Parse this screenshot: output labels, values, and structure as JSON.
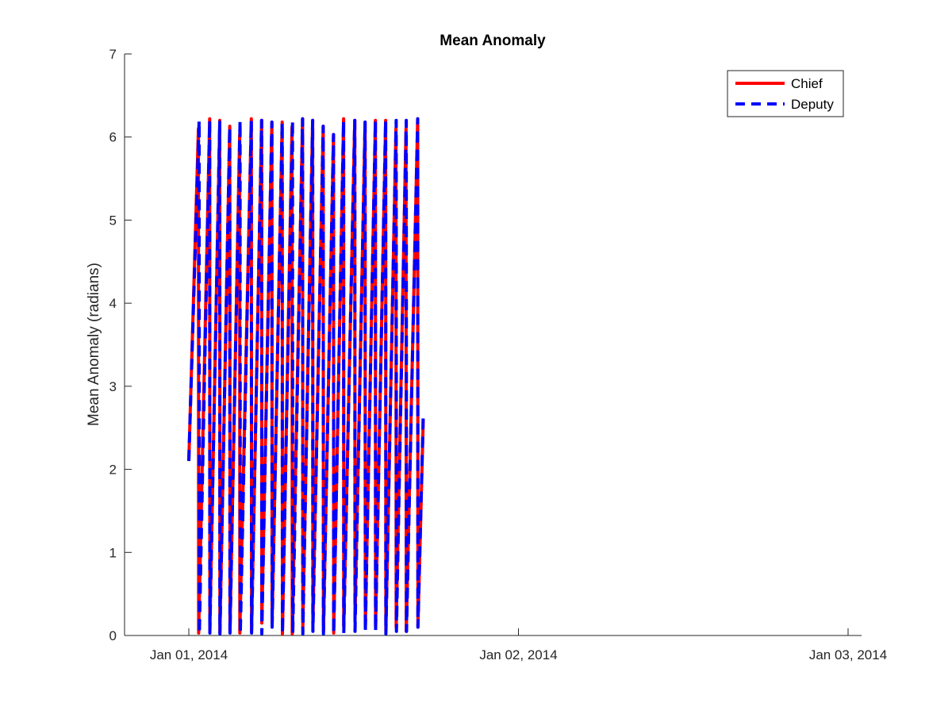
{
  "chart_data": {
    "type": "line",
    "title": "Mean Anomaly",
    "xlabel": "",
    "ylabel": "Mean Anomaly (radians)",
    "x_ticks": [
      "Jan 01, 2014",
      "Jan 02, 2014",
      "Jan 03, 2014"
    ],
    "xlim": [
      "Jan 01, 2014",
      "Jan 03, 2014"
    ],
    "ylim": [
      0,
      7
    ],
    "y_ticks": [
      0,
      1,
      2,
      3,
      4,
      5,
      6,
      7
    ],
    "grid": false,
    "legend_position": "top-right",
    "series": [
      {
        "name": "Chief",
        "color": "#ff0000",
        "style": "solid",
        "x": [
          "2014-01-01T00:00",
          "2014-01-01T00:42",
          "2014-01-01T00:43",
          "2014-01-01T01:31",
          "2014-01-01T01:32",
          "2014-01-01T02:15",
          "2014-01-01T02:16",
          "2014-01-01T02:59",
          "2014-01-01T03:00",
          "2014-01-01T03:42",
          "2014-01-01T03:43",
          "2014-01-01T04:33",
          "2014-01-01T04:34",
          "2014-01-01T05:18",
          "2014-01-01T05:19",
          "2014-01-01T06:03",
          "2014-01-01T06:04",
          "2014-01-01T06:48",
          "2014-01-01T06:49",
          "2014-01-01T07:31",
          "2014-01-01T07:32",
          "2014-01-01T08:17",
          "2014-01-01T08:18",
          "2014-01-01T09:01",
          "2014-01-01T09:02",
          "2014-01-01T09:47",
          "2014-01-01T09:48",
          "2014-01-01T10:32",
          "2014-01-01T10:33",
          "2014-01-01T11:16",
          "2014-01-01T11:17",
          "2014-01-01T12:05",
          "2014-01-01T12:06",
          "2014-01-01T12:50",
          "2014-01-01T12:51",
          "2014-01-01T13:35",
          "2014-01-01T13:36",
          "2014-01-01T14:20",
          "2014-01-01T14:21",
          "2014-01-01T15:05",
          "2014-01-01T15:06",
          "2014-01-01T15:49",
          "2014-01-01T15:50",
          "2014-01-01T16:40",
          "2014-01-01T16:41",
          "2014-01-01T17:04"
        ],
        "y": [
          2.1,
          6.1,
          0.03,
          6.22,
          0.05,
          6.2,
          0.03,
          6.13,
          0.05,
          6.03,
          0.03,
          6.22,
          0.05,
          6.2,
          0.15,
          6.18,
          0.15,
          6.18,
          0.02,
          6.12,
          0.02,
          6.22,
          0.1,
          6.2,
          0.15,
          6.13,
          0.05,
          6.03,
          0.03,
          6.22,
          0.1,
          6.2,
          0.2,
          6.18,
          0.1,
          6.2,
          0.1,
          6.2,
          0.05,
          6.1,
          0.1,
          6.1,
          0.05,
          6.22,
          0.1,
          2.6
        ]
      },
      {
        "name": "Deputy",
        "color": "#0000ff",
        "style": "dashed",
        "x": [
          "2014-01-01T00:00",
          "2014-01-01T00:45",
          "2014-01-01T00:46",
          "2014-01-01T01:31",
          "2014-01-01T01:32",
          "2014-01-01T02:15",
          "2014-01-01T02:16",
          "2014-01-01T02:59",
          "2014-01-01T03:00",
          "2014-01-01T03:44",
          "2014-01-01T03:45",
          "2014-01-01T04:33",
          "2014-01-01T04:34",
          "2014-01-01T05:18",
          "2014-01-01T05:19",
          "2014-01-01T06:03",
          "2014-01-01T06:04",
          "2014-01-01T06:48",
          "2014-01-01T06:49",
          "2014-01-01T07:33",
          "2014-01-01T07:34",
          "2014-01-01T08:17",
          "2014-01-01T08:18",
          "2014-01-01T09:01",
          "2014-01-01T09:02",
          "2014-01-01T09:47",
          "2014-01-01T09:48",
          "2014-01-01T10:32",
          "2014-01-01T10:33",
          "2014-01-01T11:16",
          "2014-01-01T11:17",
          "2014-01-01T12:05",
          "2014-01-01T12:06",
          "2014-01-01T12:50",
          "2014-01-01T12:51",
          "2014-01-01T13:35",
          "2014-01-01T13:36",
          "2014-01-01T14:20",
          "2014-01-01T14:21",
          "2014-01-01T15:06",
          "2014-01-01T15:07",
          "2014-01-01T15:50",
          "2014-01-01T15:51",
          "2014-01-01T16:40",
          "2014-01-01T16:41",
          "2014-01-01T17:04"
        ],
        "y": [
          2.1,
          6.2,
          0.02,
          6.2,
          0.03,
          6.18,
          0.02,
          6.12,
          0.03,
          6.2,
          0.02,
          6.2,
          0.03,
          6.2,
          0.02,
          6.18,
          0.1,
          6.18,
          0.02,
          6.2,
          0.03,
          6.22,
          0.02,
          6.2,
          0.05,
          6.13,
          0.02,
          6.03,
          0.02,
          6.2,
          0.03,
          6.2,
          0.05,
          6.18,
          0.05,
          6.2,
          0.05,
          6.2,
          0.02,
          6.2,
          0.05,
          6.2,
          0.05,
          6.22,
          0.1,
          2.65
        ]
      }
    ]
  }
}
